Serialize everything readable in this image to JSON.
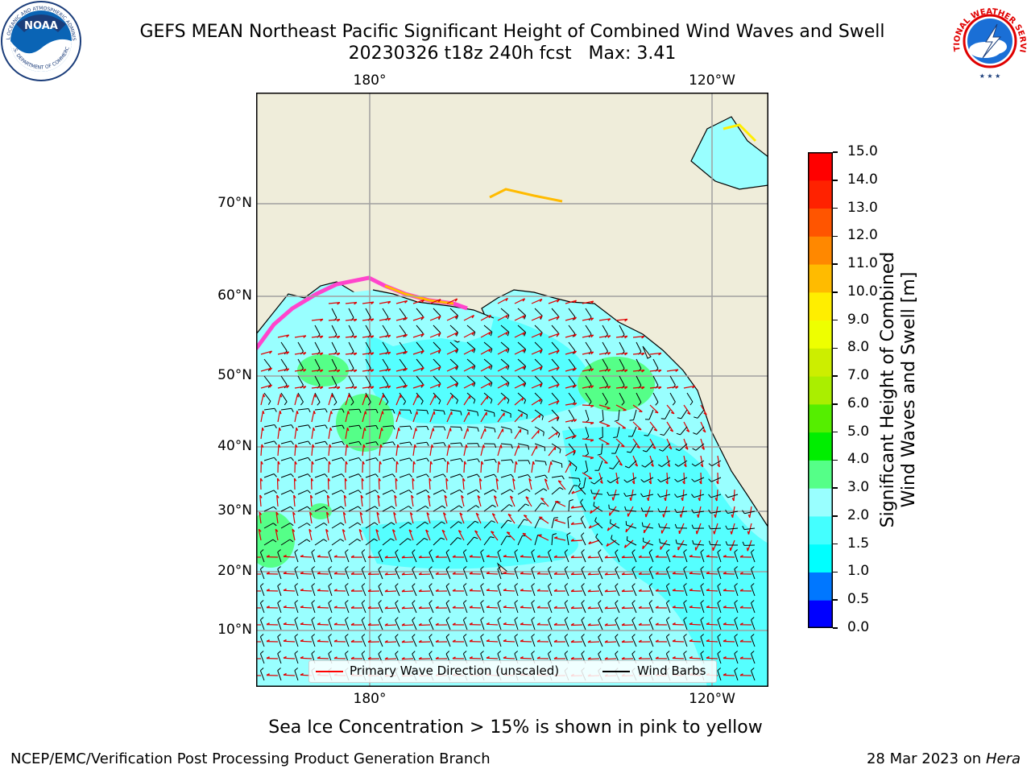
{
  "title_line1": "GEFS MEAN Northeast Pacific Significant Height of Combined Wind Waves and Swell",
  "title_line2": "20230326 t18z 240h fcst   Max: 3.41",
  "footnote": "Sea Ice Concentration > 15% is shown in pink to yellow",
  "footer_left": "NCEP/EMC/Verification Post Processing Product Generation Branch",
  "footer_date": "28 Mar 2023 on",
  "footer_host": "Hera",
  "logos": {
    "noaa_text": "NOAA",
    "noaa_ring_top": "NATIONAL OCEANIC AND ATMOSPHERIC ADMINISTRATION",
    "noaa_ring_bottom": "U.S. DEPARTMENT OF COMMERCE",
    "nws_ring": "NATIONAL WEATHER SERVICE"
  },
  "axes": {
    "lon_labels": [
      "180°",
      "120°W"
    ],
    "lat_labels": [
      "70°N",
      "60°N",
      "50°N",
      "40°N",
      "30°N",
      "20°N",
      "10°N"
    ]
  },
  "legend": {
    "wave_label": "Primary Wave Direction (unscaled)",
    "wind_label": "Wind Barbs",
    "wave_color": "#ff0000",
    "wind_color": "#000000"
  },
  "colorbar": {
    "label_line1": "Significant Height of Combined",
    "label_line2": "Wind Waves and Swell [m]",
    "ticks": [
      "0.0",
      "0.5",
      "1.0",
      "1.5",
      "2.0",
      "3.0",
      "4.0",
      "5.0",
      "6.0",
      "7.0",
      "8.0",
      "9.0",
      "10.0",
      "11.0",
      "12.0",
      "13.0",
      "14.0",
      "15.0"
    ],
    "colors": [
      "#0000ff",
      "#0077ff",
      "#00ffff",
      "#44ffff",
      "#99ffff",
      "#55ff88",
      "#00ee00",
      "#55ee00",
      "#aaee00",
      "#ccee00",
      "#eeff00",
      "#ffee00",
      "#ffbb00",
      "#ff8800",
      "#ff5500",
      "#ff2200",
      "#ff0000"
    ]
  },
  "colors": {
    "land": "#efedda",
    "ocean_base": "#99ffff",
    "ocean_light": "#55ffff",
    "high_wave": "#55ff88",
    "ice": "#ff44cc"
  }
}
